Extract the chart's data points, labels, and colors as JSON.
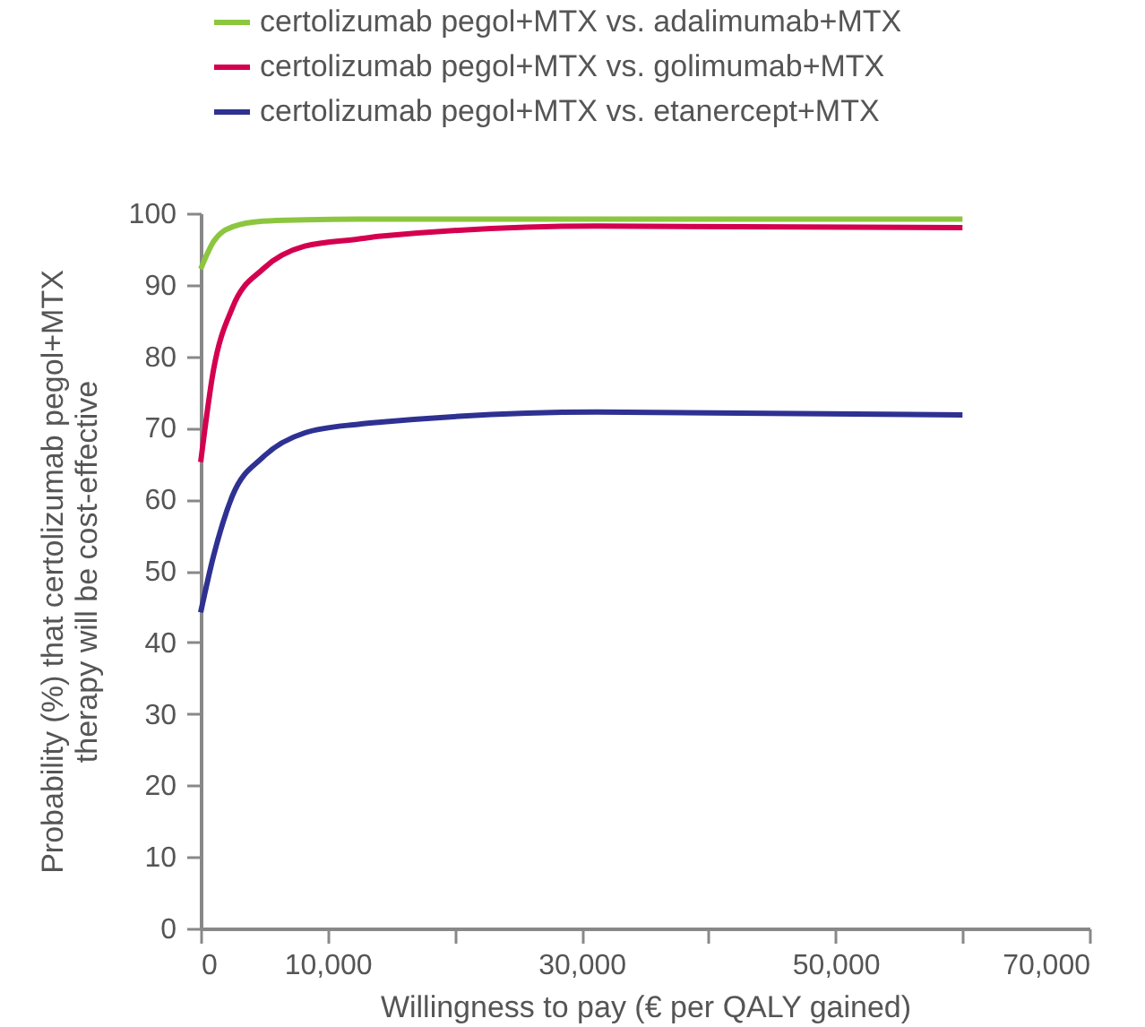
{
  "chart_data": {
    "type": "line",
    "xlabel": "Willingness to pay (€ per QALY gained)",
    "ylabel": "Probability (%) that certolizumab pegol+MTX\ntherapy will be cost-effective",
    "x": [
      0,
      1000,
      2500,
      4900,
      8200,
      12400,
      14200,
      31200,
      60000
    ],
    "series": [
      {
        "name": "certolizumab pegol+MTX vs. adalimumab+MTX",
        "color": "#8cc63f",
        "values": [
          92.2,
          96,
          98.1,
          98.9,
          99.1,
          99.2,
          99.2,
          99.2,
          99.2
        ]
      },
      {
        "name": "certolizumab pegol+MTX vs. golimumab+MTX",
        "color": "#d4004f",
        "values": [
          65.2,
          78,
          86.8,
          92.2,
          95.4,
          96.4,
          96.8,
          98.2,
          98.0
        ]
      },
      {
        "name": "certolizumab pegol+MTX vs. etanercept+MTX",
        "color": "#2e3192",
        "values": [
          44.2,
          52,
          60.5,
          65.9,
          69.3,
          70.5,
          70.8,
          72.2,
          71.8
        ]
      }
    ],
    "xlim": [
      0,
      70000
    ],
    "xticks": [
      0,
      {
        "value": 10000,
        "label": "10,000"
      },
      {
        "value": 20000,
        "label": null
      },
      {
        "value": 30000,
        "label": "30,000"
      },
      {
        "value": 40000,
        "label": null
      },
      {
        "value": 50000,
        "label": "50,000"
      },
      {
        "value": 60000,
        "label": null
      },
      {
        "value": 70000,
        "label": "70,000"
      }
    ],
    "ylim": [
      0,
      100
    ],
    "yticks": [
      0,
      10,
      20,
      30,
      40,
      50,
      60,
      70,
      80,
      90,
      100
    ],
    "grid": false,
    "legend": "top",
    "line_style": "solid",
    "marker": "none"
  }
}
